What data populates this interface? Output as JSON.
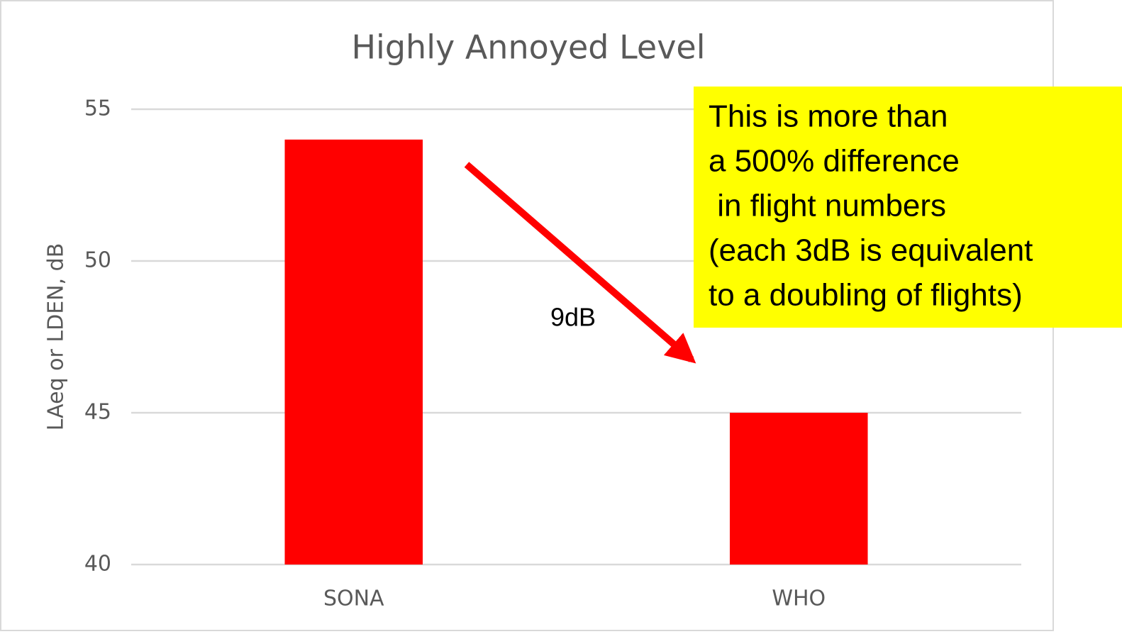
{
  "chart_data": {
    "type": "bar",
    "title": "Highly Annoyed Level",
    "y_label": "LAeq or LDEN, dB",
    "categories": [
      "SONA",
      "WHO"
    ],
    "values": [
      54,
      45
    ],
    "color": "#ff0000",
    "ylim": [
      40,
      55
    ],
    "yticks": [
      40,
      45,
      50,
      55
    ],
    "grid": true,
    "annotation": "9dB",
    "callout": [
      "This is more than",
      "a 500% difference",
      " in flight numbers",
      "(each 3dB is equivalent",
      "to a doubling of flights)"
    ]
  }
}
